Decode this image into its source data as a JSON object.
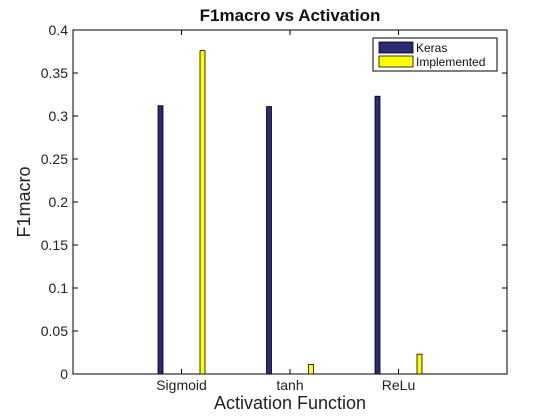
{
  "chart_data": {
    "type": "bar",
    "title": "F1macro vs Activation",
    "xlabel": "Activation Function",
    "ylabel": "F1macro",
    "categories": [
      "Sigmoid",
      "tanh",
      "ReLu"
    ],
    "series": [
      {
        "name": "Keras",
        "color": "#2a2a78",
        "values": [
          0.312,
          0.311,
          0.323
        ]
      },
      {
        "name": "Implemented",
        "color": "#ffff00",
        "values": [
          0.376,
          0.011,
          0.023
        ]
      }
    ],
    "ylim": [
      0,
      0.4
    ],
    "yticks": [
      "0",
      "0.05",
      "0.1",
      "0.15",
      "0.2",
      "0.25",
      "0.3",
      "0.35",
      "0.4"
    ],
    "grid": false,
    "legend_position": "top-right"
  }
}
